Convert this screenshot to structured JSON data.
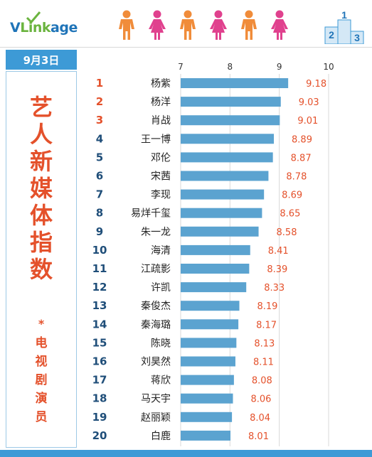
{
  "brand": {
    "v": "V",
    "link": "Link",
    "age": "age"
  },
  "date": "9月3日",
  "side_title": [
    "艺",
    "人",
    "新",
    "媒",
    "体",
    "指",
    "数"
  ],
  "side_star": "*",
  "side_sub": [
    "电",
    "视",
    "剧",
    "演",
    "员"
  ],
  "colors": {
    "bar": "#5ba3d0",
    "accent": "#e4512b",
    "badge": "#3d9ad6",
    "male": "#f08c3a",
    "female": "#e0418e"
  },
  "icons": [
    "male-figure-icon",
    "female-figure-icon",
    "male-figure-icon",
    "female-figure-icon",
    "male-figure-icon",
    "female-figure-icon",
    "podium-icon"
  ],
  "chart_data": {
    "type": "bar",
    "orientation": "horizontal",
    "xlim": [
      7,
      10
    ],
    "xticks": [
      7,
      8,
      9,
      10
    ],
    "grid": true,
    "ranks": [
      "1",
      "2",
      "3",
      "4",
      "5",
      "6",
      "7",
      "8",
      "9",
      "10",
      "11",
      "12",
      "13",
      "14",
      "15",
      "16",
      "17",
      "18",
      "19",
      "20"
    ],
    "categories": [
      "杨紫",
      "杨洋",
      "肖战",
      "王一博",
      "邓伦",
      "宋茜",
      "李现",
      "易烊千玺",
      "朱一龙",
      "海清",
      "江疏影",
      "许凯",
      "秦俊杰",
      "秦海璐",
      "陈晓",
      "刘昊然",
      "蒋欣",
      "马天宇",
      "赵丽颖",
      "白鹿"
    ],
    "values": [
      9.18,
      9.03,
      9.01,
      8.89,
      8.87,
      8.78,
      8.69,
      8.65,
      8.58,
      8.41,
      8.39,
      8.33,
      8.19,
      8.17,
      8.13,
      8.11,
      8.08,
      8.06,
      8.04,
      8.01
    ],
    "value_labels": [
      "9.18",
      "9.03",
      "9.01",
      "8.89",
      "8.87",
      "8.78",
      "8.69",
      "8.65",
      "8.58",
      "8.41",
      "8.39",
      "8.33",
      "8.19",
      "8.17",
      "8.13",
      "8.11",
      "8.08",
      "8.06",
      "8.04",
      "8.01"
    ]
  }
}
